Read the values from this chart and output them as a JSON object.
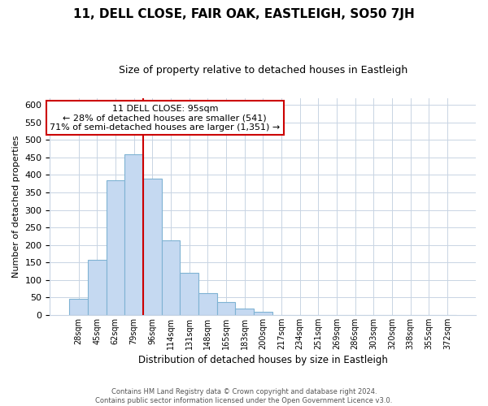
{
  "title": "11, DELL CLOSE, FAIR OAK, EASTLEIGH, SO50 7JH",
  "subtitle": "Size of property relative to detached houses in Eastleigh",
  "xlabel": "Distribution of detached houses by size in Eastleigh",
  "ylabel": "Number of detached properties",
  "footer_line1": "Contains HM Land Registry data © Crown copyright and database right 2024.",
  "footer_line2": "Contains public sector information licensed under the Open Government Licence v3.0.",
  "bar_labels": [
    "28sqm",
    "45sqm",
    "62sqm",
    "79sqm",
    "96sqm",
    "114sqm",
    "131sqm",
    "148sqm",
    "165sqm",
    "183sqm",
    "200sqm",
    "217sqm",
    "234sqm",
    "251sqm",
    "269sqm",
    "286sqm",
    "303sqm",
    "320sqm",
    "338sqm",
    "355sqm",
    "372sqm"
  ],
  "bar_values": [
    45,
    158,
    385,
    460,
    390,
    213,
    120,
    63,
    37,
    18,
    8,
    0,
    0,
    0,
    0,
    0,
    0,
    0,
    0,
    0,
    0
  ],
  "bar_color": "#c5d9f1",
  "bar_edgecolor": "#7fb3d3",
  "annotation_line1": "11 DELL CLOSE: 95sqm",
  "annotation_line2": "← 28% of detached houses are smaller (541)",
  "annotation_line3": "71% of semi-detached houses are larger (1,351) →",
  "vline_color": "#cc0000",
  "annotation_box_edgecolor": "#cc0000",
  "ylim": [
    0,
    620
  ],
  "yticks": [
    0,
    50,
    100,
    150,
    200,
    250,
    300,
    350,
    400,
    450,
    500,
    550,
    600
  ],
  "grid_color": "#c8d4e3",
  "background_color": "#ffffff",
  "title_fontsize": 11,
  "subtitle_fontsize": 9
}
